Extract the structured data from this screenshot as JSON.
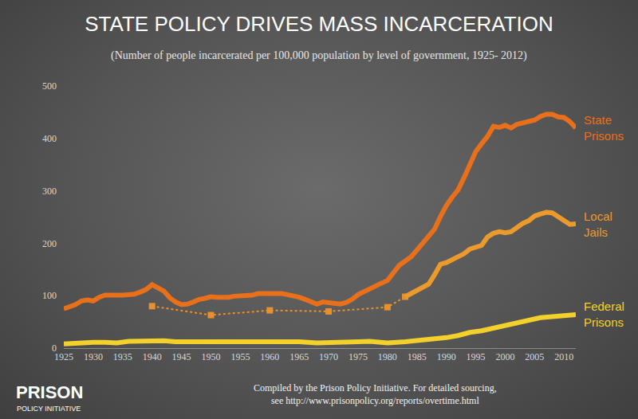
{
  "chart_data": {
    "type": "line",
    "title": "STATE POLICY DRIVES MASS INCARCERATION",
    "subtitle": "(Number of people incarcerated per 100,000 population by level of government, 1925- 2012)",
    "source": [
      "Compiled by the Prison Policy Initiative. For detailed sourcing,",
      "see http://www.prisonpolicy.org/reports/overtime.html"
    ],
    "logo": [
      "PRISON",
      "POLICY INITIATIVE"
    ],
    "xlim": [
      1925,
      2012
    ],
    "xticks": [
      1925,
      1930,
      1935,
      1940,
      1945,
      1950,
      1955,
      1960,
      1965,
      1970,
      1975,
      1980,
      1985,
      1990,
      1995,
      2000,
      2005,
      2010
    ],
    "ylim": [
      0,
      500
    ],
    "yticks": [
      0,
      100,
      200,
      300,
      400,
      500
    ],
    "grid": false,
    "series": [
      {
        "name": "State Prisons",
        "color": "#e8701a",
        "line_style": "solid",
        "x": [
          1925,
          1926,
          1927,
          1928,
          1929,
          1930,
          1931,
          1932,
          1933,
          1934,
          1935,
          1936,
          1937,
          1938,
          1939,
          1940,
          1941,
          1942,
          1943,
          1944,
          1945,
          1946,
          1947,
          1948,
          1949,
          1950,
          1951,
          1952,
          1953,
          1954,
          1955,
          1956,
          1957,
          1958,
          1959,
          1960,
          1961,
          1962,
          1963,
          1964,
          1965,
          1966,
          1967,
          1968,
          1969,
          1970,
          1971,
          1972,
          1973,
          1974,
          1975,
          1976,
          1977,
          1978,
          1979,
          1980,
          1981,
          1982,
          1983,
          1984,
          1985,
          1986,
          1987,
          1988,
          1989,
          1990,
          1991,
          1992,
          1993,
          1994,
          1995,
          1996,
          1997,
          1998,
          1999,
          2000,
          2001,
          2002,
          2003,
          2004,
          2005,
          2006,
          2007,
          2008,
          2009,
          2010,
          2011,
          2012
        ],
        "values": [
          75,
          78,
          83,
          90,
          92,
          90,
          97,
          101,
          102,
          101,
          101,
          102,
          103,
          107,
          112,
          121,
          116,
          109,
          96,
          88,
          83,
          84,
          88,
          93,
          95,
          98,
          97,
          96,
          97,
          99,
          99,
          100,
          101,
          104,
          104,
          104,
          106,
          104,
          102,
          100,
          97,
          93,
          89,
          84,
          88,
          87,
          86,
          84,
          87,
          93,
          102,
          108,
          113,
          120,
          124,
          129,
          142,
          158,
          166,
          174,
          187,
          200,
          213,
          227,
          251,
          272,
          288,
          302,
          325,
          351,
          375,
          390,
          404,
          423,
          421,
          425,
          420,
          427,
          430,
          433,
          435,
          442,
          446,
          446,
          441,
          440,
          432,
          420
        ]
      },
      {
        "color": "#e8902e",
        "line_style": "dotted",
        "marker": "square",
        "x": [
          1940,
          1950,
          1960,
          1970,
          1980,
          1983
        ],
        "values": [
          80,
          63,
          72,
          70,
          78,
          98
        ]
      },
      {
        "name": "Local Jails",
        "color": "#eb9a2c",
        "line_style": "solid",
        "x": [
          1983,
          1984,
          1985,
          1986,
          1987,
          1988,
          1989,
          1990,
          1991,
          1992,
          1993,
          1994,
          1995,
          1996,
          1997,
          1998,
          1999,
          2000,
          2001,
          2002,
          2003,
          2004,
          2005,
          2006,
          2007,
          2008,
          2009,
          2010,
          2011,
          2012
        ],
        "values": [
          98,
          104,
          110,
          115,
          122,
          140,
          160,
          163,
          168,
          175,
          180,
          189,
          193,
          196,
          212,
          219,
          222,
          220,
          222,
          231,
          238,
          243,
          252,
          256,
          259,
          258,
          250,
          242,
          236,
          237
        ]
      },
      {
        "name": "Federal Prisons",
        "color": "#f3d12a",
        "line_style": "solid",
        "x": [
          1925,
          1927,
          1929,
          1930,
          1932,
          1934,
          1936,
          1938,
          1940,
          1942,
          1944,
          1946,
          1948,
          1950,
          1955,
          1960,
          1962,
          1965,
          1968,
          1970,
          1972,
          1975,
          1977,
          1979,
          1980,
          1983,
          1985,
          1987,
          1990,
          1992,
          1994,
          1996,
          1998,
          2000,
          2002,
          2004,
          2006,
          2008,
          2010,
          2012
        ],
        "values": [
          8,
          9,
          12,
          11,
          11,
          10,
          13,
          13,
          15,
          14,
          12,
          13,
          12,
          12,
          12,
          13,
          13,
          12,
          10,
          10,
          11,
          12,
          13,
          10,
          10,
          12,
          14,
          17,
          20,
          24,
          30,
          33,
          38,
          44,
          50,
          54,
          58,
          60,
          62,
          64
        ]
      }
    ]
  }
}
